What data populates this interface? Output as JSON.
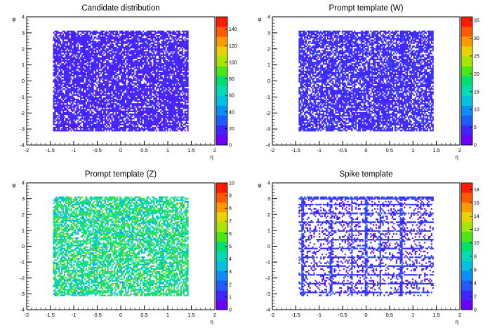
{
  "chart_data": [
    {
      "type": "heatmap",
      "title": "Candidate distribution",
      "xlabel": "η",
      "ylabel": "φ",
      "xlim": [
        -2,
        2
      ],
      "ylim": [
        -4,
        4
      ],
      "x_ticks": [
        "-2",
        "-1.5",
        "-1",
        "-0.5",
        "0",
        "0.5",
        "1",
        "1.5",
        "2"
      ],
      "y_ticks": [
        "-4",
        "-3",
        "-2",
        "-1",
        "0",
        "1",
        "2",
        "3",
        "4"
      ],
      "filled_region": {
        "eta": [
          -1.44,
          1.44
        ],
        "phi": [
          -3.14,
          3.14
        ]
      },
      "palette_position": "right",
      "zlim": [
        0,
        155
      ],
      "z_ticks": [
        "0",
        "20",
        "40",
        "60",
        "80",
        "100",
        "120",
        "140"
      ],
      "occupancy": 0.8,
      "typical_level": 0.07,
      "pattern": "uniform"
    },
    {
      "type": "heatmap",
      "title": "Prompt template (W)",
      "xlabel": "η",
      "ylabel": "φ",
      "xlim": [
        -2,
        2
      ],
      "ylim": [
        -4,
        4
      ],
      "x_ticks": [
        "-2",
        "-1.5",
        "-1",
        "-0.5",
        "0",
        "0.5",
        "1",
        "1.5",
        "2"
      ],
      "y_ticks": [
        "-4",
        "-3",
        "-2",
        "-1",
        "0",
        "1",
        "2",
        "3",
        "4"
      ],
      "filled_region": {
        "eta": [
          -1.44,
          1.44
        ],
        "phi": [
          -3.14,
          3.14
        ]
      },
      "palette_position": "right",
      "zlim": [
        0,
        36
      ],
      "z_ticks": [
        "0",
        "5",
        "10",
        "15",
        "20",
        "25",
        "30",
        "35"
      ],
      "occupancy": 0.75,
      "typical_level": 0.08,
      "pattern": "uniform"
    },
    {
      "type": "heatmap",
      "title": "Prompt template (Z)",
      "xlabel": "η",
      "ylabel": "φ",
      "xlim": [
        -2,
        2
      ],
      "ylim": [
        -4,
        4
      ],
      "x_ticks": [
        "-2",
        "-1.5",
        "-1",
        "-0.5",
        "0",
        "0.5",
        "1",
        "1.5",
        "2"
      ],
      "y_ticks": [
        "-4",
        "-3",
        "-2",
        "-1",
        "0",
        "1",
        "2",
        "3",
        "4"
      ],
      "filled_region": {
        "eta": [
          -1.44,
          1.44
        ],
        "phi": [
          -3.14,
          3.14
        ]
      },
      "palette_position": "right",
      "zlim": [
        0,
        10
      ],
      "z_ticks": [
        "0",
        "1",
        "2",
        "3",
        "4",
        "5",
        "6",
        "7",
        "8",
        "9",
        "10"
      ],
      "occupancy": 0.7,
      "typical_level": 0.3,
      "pattern": "uniform"
    },
    {
      "type": "heatmap",
      "title": "Spike template",
      "xlabel": "η",
      "ylabel": "φ",
      "xlim": [
        -2,
        2
      ],
      "ylim": [
        -4,
        4
      ],
      "x_ticks": [
        "-2",
        "-1.5",
        "-1",
        "-0.5",
        "0",
        "0.5",
        "1",
        "1.5",
        "2"
      ],
      "y_ticks": [
        "-4",
        "-3",
        "-2",
        "-1",
        "0",
        "1",
        "2",
        "3",
        "4"
      ],
      "filled_region": {
        "eta": [
          -1.44,
          1.44
        ],
        "phi": [
          -3.14,
          3.14
        ]
      },
      "palette_position": "right",
      "zlim": [
        0,
        19
      ],
      "z_ticks": [
        "0",
        "2",
        "4",
        "6",
        "8",
        "10",
        "12",
        "14",
        "16",
        "18"
      ],
      "occupancy": 0.2,
      "typical_level": 0.06,
      "pattern": "stripes",
      "stripe_eta": [
        -1.35,
        -0.75,
        -0.3,
        0.0,
        0.3,
        0.75
      ],
      "stripe_phi": [
        3.05,
        2.6,
        2.1,
        1.5,
        0.95,
        0.4,
        -0.15,
        -0.7,
        -1.25,
        -1.8,
        -2.35,
        -2.9
      ]
    }
  ],
  "colors": {
    "palette": [
      "#6a00ff",
      "#3f25ff",
      "#1f5bff",
      "#0b8ff4",
      "#02c0e0",
      "#00dcb4",
      "#00e070",
      "#4ce614",
      "#a6e600",
      "#e8d400",
      "#ff9b00",
      "#ff5a00",
      "#ff1a00"
    ],
    "axis": "#000000",
    "background": "#ffffff"
  }
}
